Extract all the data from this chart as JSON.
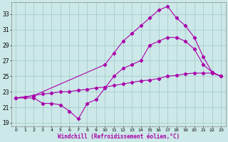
{
  "xlabel": "Windchill (Refroidissement éolien,°C)",
  "background_color": "#cce8e8",
  "grid_color": "#aacccc",
  "line_color": "#aa00aa",
  "xlim": [
    -0.5,
    23.5
  ],
  "ylim": [
    18.5,
    34.5
  ],
  "xticks": [
    0,
    1,
    2,
    3,
    4,
    5,
    6,
    7,
    8,
    9,
    10,
    11,
    12,
    13,
    14,
    15,
    16,
    17,
    18,
    19,
    20,
    21,
    22,
    23
  ],
  "yticks": [
    19,
    21,
    23,
    25,
    27,
    29,
    31,
    33
  ],
  "line1_x": [
    0,
    1,
    2,
    3,
    4,
    5,
    6,
    7,
    8,
    9,
    10,
    11,
    12,
    13,
    14,
    15,
    16,
    17,
    18,
    19,
    20,
    21,
    22,
    23
  ],
  "line1_y": [
    22.2,
    22.3,
    22.5,
    22.7,
    22.8,
    23.0,
    23.0,
    23.2,
    23.3,
    23.5,
    23.6,
    23.8,
    24.0,
    24.2,
    24.4,
    24.5,
    24.7,
    25.0,
    25.1,
    25.3,
    25.4,
    25.4,
    25.4,
    25.0
  ],
  "line2_x": [
    0,
    2,
    3,
    4,
    5,
    6,
    7,
    8,
    9,
    10,
    11,
    12,
    13,
    14,
    15,
    16,
    17,
    18,
    19,
    20,
    21,
    22,
    23
  ],
  "line2_y": [
    22.2,
    22.2,
    21.5,
    21.5,
    21.3,
    20.5,
    19.5,
    21.5,
    22.0,
    23.5,
    25.0,
    26.0,
    26.5,
    27.0,
    29.0,
    29.5,
    30.0,
    30.0,
    29.5,
    28.5,
    26.5,
    25.5,
    25.0
  ],
  "line3_x": [
    0,
    2,
    10,
    11,
    12,
    13,
    14,
    15,
    16,
    17,
    18,
    19,
    20,
    21,
    22,
    23
  ],
  "line3_y": [
    22.2,
    22.5,
    26.5,
    28.0,
    29.5,
    30.5,
    31.5,
    32.5,
    33.5,
    34.0,
    32.5,
    31.5,
    30.0,
    27.5,
    25.5,
    25.0
  ]
}
